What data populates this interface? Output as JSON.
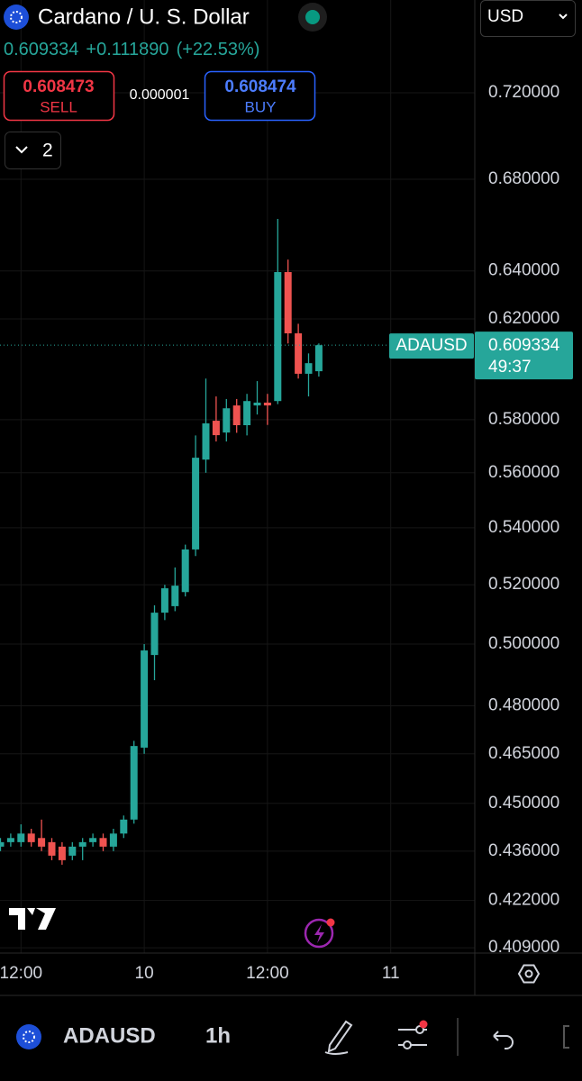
{
  "header": {
    "title": "Cardano / U. S. Dollar",
    "currency": "USD",
    "price": "0.609334",
    "change": "+0.111890",
    "change_pct": "(+22.53%)"
  },
  "trade": {
    "sell_price": "0.608473",
    "sell": "SELL",
    "spread": "0.000001",
    "buy_price": "0.608474",
    "buy": "BUY"
  },
  "indicators_count": "2",
  "toolbar": {
    "symbol": "ADAUSD",
    "interval": "1h"
  },
  "chart_data": {
    "type": "candlestick",
    "log_scale": true,
    "grid": true,
    "up_color": "#26a69a",
    "down_color": "#ef5350",
    "categories": [
      null,
      null,
      "12:00",
      null,
      null,
      null,
      null,
      null,
      null,
      null,
      null,
      null,
      null,
      null,
      "10",
      null,
      null,
      null,
      null,
      null,
      null,
      null,
      null,
      null,
      null,
      null,
      "12:00",
      null,
      null,
      null,
      null,
      null,
      null,
      null,
      null,
      null,
      null,
      null,
      "11"
    ],
    "open": [
      0.4373,
      0.4386,
      0.4386,
      0.4411,
      0.4398,
      0.4386,
      0.4373,
      0.4347,
      0.4373,
      0.4386,
      0.4398,
      0.4373,
      0.4411,
      0.4452,
      0.4669,
      0.4964,
      0.5105,
      0.5127,
      0.5175,
      0.5323,
      0.5649,
      0.5796,
      0.5751,
      0.5855,
      0.5779,
      0.5855,
      0.5866,
      0.5872,
      0.6395,
      0.6141,
      0.5979,
      0.5989,
      null,
      null,
      null,
      null,
      null,
      null,
      null
    ],
    "high": [
      0.4398,
      0.4411,
      0.4438,
      0.4425,
      0.4452,
      0.4398,
      0.4386,
      0.4386,
      0.4398,
      0.4411,
      0.4411,
      0.4425,
      0.4464,
      0.469,
      0.5,
      0.513,
      0.52,
      0.526,
      0.534,
      0.574,
      0.596,
      0.589,
      0.588,
      0.588,
      0.59,
      0.595,
      0.59,
      0.6624,
      0.6448,
      0.618,
      0.606,
      0.61,
      null,
      null,
      null,
      null,
      null,
      null,
      null
    ],
    "low": [
      0.436,
      0.4373,
      0.4373,
      0.4373,
      0.436,
      0.4334,
      0.4321,
      0.4334,
      0.4334,
      0.4373,
      0.436,
      0.436,
      0.4398,
      0.444,
      0.465,
      0.4882,
      0.508,
      0.511,
      0.516,
      0.53,
      0.56,
      0.5717,
      0.5717,
      0.575,
      0.574,
      0.582,
      0.578,
      0.586,
      0.61,
      0.596,
      0.589,
      0.5968,
      null,
      null,
      null,
      null,
      null,
      null,
      null
    ],
    "close": [
      0.4386,
      0.4398,
      0.4411,
      0.4386,
      0.4373,
      0.4347,
      0.4334,
      0.4373,
      0.4386,
      0.4398,
      0.4373,
      0.4411,
      0.4452,
      0.4674,
      0.4979,
      0.5105,
      0.5188,
      0.5197,
      0.5323,
      0.5656,
      0.5786,
      0.5741,
      0.5844,
      0.5779,
      0.5872,
      0.5866,
      0.5855,
      0.6395,
      0.6141,
      0.5979,
      0.6021,
      0.6093,
      null,
      null,
      null,
      null,
      null,
      null,
      null
    ],
    "ylim": [
      0.4083,
      0.7656
    ],
    "yticks": [
      {
        "value": 0.72,
        "label": "0.720000"
      },
      {
        "value": 0.68,
        "label": "0.680000"
      },
      {
        "value": 0.64,
        "label": "0.640000"
      },
      {
        "value": 0.62,
        "label": "0.620000"
      },
      {
        "value": 0.58,
        "label": "0.580000"
      },
      {
        "value": 0.56,
        "label": "0.560000"
      },
      {
        "value": 0.54,
        "label": "0.540000"
      },
      {
        "value": 0.52,
        "label": "0.520000"
      },
      {
        "value": 0.5,
        "label": "0.500000"
      },
      {
        "value": 0.48,
        "label": "0.480000"
      },
      {
        "value": 0.465,
        "label": "0.465000"
      },
      {
        "value": 0.45,
        "label": "0.450000"
      },
      {
        "value": 0.436,
        "label": "0.436000"
      },
      {
        "value": 0.422,
        "label": "0.422000"
      },
      {
        "value": 0.409,
        "label": "0.409000"
      }
    ],
    "last_price": {
      "symbol": "ADAUSD",
      "price": 0.609334,
      "countdown": "49:37"
    }
  }
}
